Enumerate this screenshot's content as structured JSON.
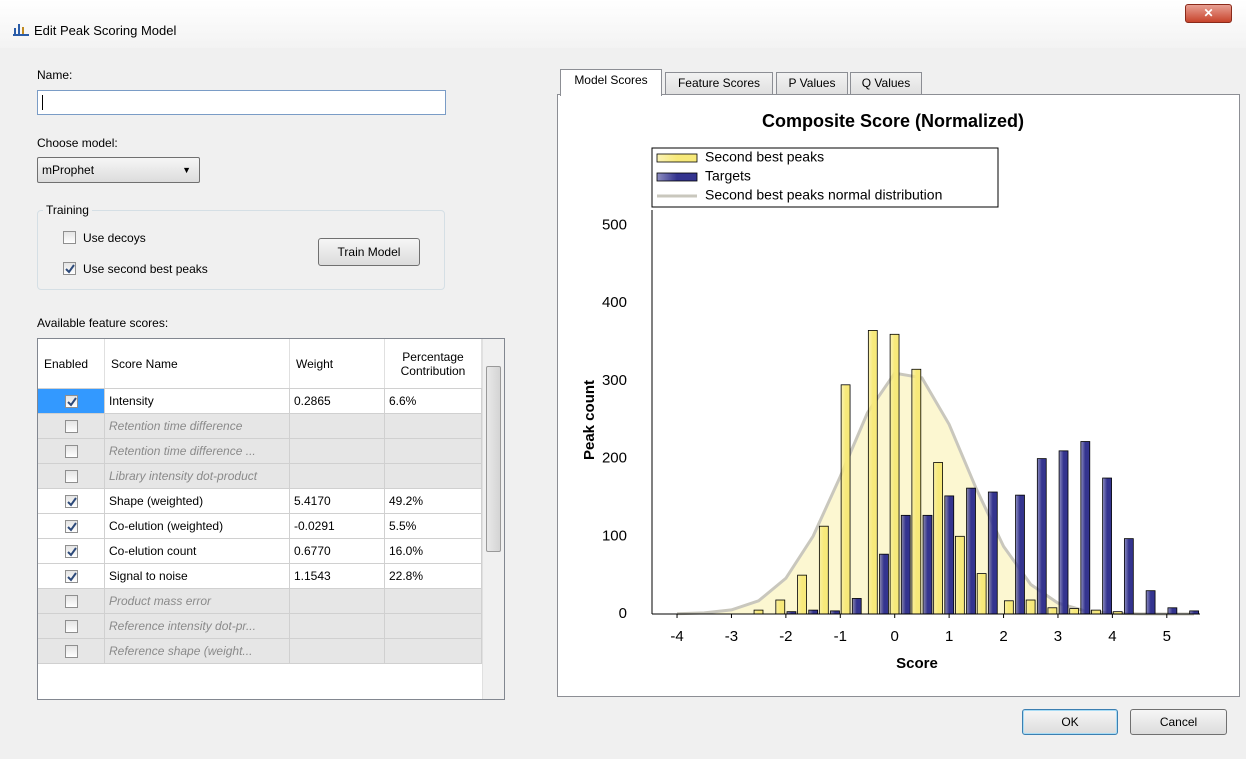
{
  "window": {
    "title": "Edit Peak Scoring Model"
  },
  "form": {
    "name_label": "Name:",
    "model_label": "Choose model:",
    "model_value": "mProphet",
    "training": {
      "label": "Training",
      "use_decoys": "Use decoys",
      "use_decoys_checked": false,
      "use_second_best": "Use second best peaks",
      "use_second_best_checked": true,
      "train_button": "Train Model"
    },
    "features_label": "Available feature scores:"
  },
  "table": {
    "columns": [
      "Enabled",
      "Score Name",
      "Weight",
      "Percentage Contribution"
    ],
    "rows": [
      {
        "enabled": true,
        "name": "Intensity",
        "weight": "0.2865",
        "contribution": "6.6%"
      },
      {
        "enabled": false,
        "name": "Retention time difference"
      },
      {
        "enabled": false,
        "name": "Retention time difference ..."
      },
      {
        "enabled": false,
        "name": "Library intensity dot-product"
      },
      {
        "enabled": true,
        "name": "Shape (weighted)",
        "weight": "5.4170",
        "contribution": "49.2%"
      },
      {
        "enabled": true,
        "name": "Co-elution (weighted)",
        "weight": "-0.0291",
        "contribution": "5.5%"
      },
      {
        "enabled": true,
        "name": "Co-elution count",
        "weight": "0.6770",
        "contribution": "16.0%"
      },
      {
        "enabled": true,
        "name": "Signal to noise",
        "weight": "1.1543",
        "contribution": "22.8%"
      },
      {
        "enabled": false,
        "name": "Product mass error"
      },
      {
        "enabled": false,
        "name": "Reference intensity dot-pr..."
      },
      {
        "enabled": false,
        "name": "Reference shape (weight..."
      }
    ]
  },
  "tabs": [
    "Model Scores",
    "Feature Scores",
    "P Values",
    "Q Values"
  ],
  "buttons": {
    "ok": "OK",
    "cancel": "Cancel"
  },
  "chart_data": {
    "type": "bar",
    "title": "Composite Score (Normalized)",
    "xlabel": "Score",
    "ylabel": "Peak count",
    "x": [
      -2.4,
      -2.0,
      -1.6,
      -1.2,
      -0.8,
      -0.3,
      0.1,
      0.5,
      0.9,
      1.3,
      1.7,
      2.2,
      2.6,
      3.0,
      3.4,
      3.8,
      4.2,
      4.6,
      5.0,
      5.4
    ],
    "bin_width": 0.41,
    "series": [
      {
        "name": "Second best peaks",
        "color": "#f7e97a",
        "values": [
          5,
          18,
          50,
          113,
          295,
          365,
          360,
          315,
          195,
          100,
          52,
          17,
          18,
          8,
          7,
          5,
          3,
          0,
          0,
          0
        ]
      },
      {
        "name": "Targets",
        "color": "#34348f",
        "values": [
          0,
          3,
          5,
          4,
          20,
          77,
          127,
          127,
          152,
          162,
          157,
          153,
          200,
          210,
          222,
          175,
          97,
          30,
          8,
          4
        ]
      },
      {
        "name": "Second best peaks normal distribution",
        "color": "#c9c7bd",
        "type": "line",
        "x": [
          -4,
          -3.5,
          -3,
          -2.5,
          -2,
          -1.5,
          -1,
          -0.5,
          0,
          0.5,
          1,
          1.5,
          2,
          2.5,
          3,
          3.5,
          4,
          4.5,
          5,
          5.5
        ],
        "values": [
          0.3,
          1.4,
          5.3,
          17,
          46,
          100,
          177,
          259,
          310,
          304,
          244,
          161,
          87,
          38,
          14,
          4,
          1,
          0.2,
          0,
          0
        ]
      }
    ],
    "xlim": [
      -4.46,
      5.61
    ],
    "ylim": [
      0,
      520
    ],
    "xticks": [
      -4,
      -3,
      -2,
      -1,
      0,
      1,
      2,
      3,
      4,
      5
    ],
    "yticks": [
      0,
      100,
      200,
      300,
      400,
      500
    ],
    "legend": "top-left",
    "grid": false
  }
}
